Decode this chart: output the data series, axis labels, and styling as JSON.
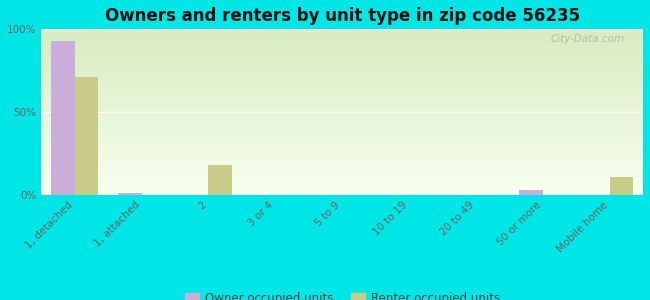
{
  "title": "Owners and renters by unit type in zip code 56235",
  "categories": [
    "1, detached",
    "1, attached",
    "2",
    "3 or 4",
    "5 to 9",
    "10 to 19",
    "20 to 49",
    "50 or more",
    "Mobile home"
  ],
  "owner_values": [
    93,
    1,
    0,
    0,
    0,
    0,
    0,
    3,
    0
  ],
  "renter_values": [
    71,
    0,
    18,
    0,
    0,
    0,
    0,
    0,
    11
  ],
  "owner_color": "#c8aed8",
  "renter_color": "#c8cc88",
  "background_color": "#00e5e5",
  "plot_bg_color": "#f0f8e8",
  "gradient_top": "#d8ecc0",
  "gradient_bottom": "#f8fff0",
  "ylim": [
    0,
    100
  ],
  "yticks": [
    0,
    50,
    100
  ],
  "ytick_labels": [
    "0%",
    "50%",
    "100%"
  ],
  "bar_width": 0.35,
  "legend_owner": "Owner occupied units",
  "legend_renter": "Renter occupied units",
  "watermark": "City-Data.com",
  "title_fontsize": 12,
  "tick_fontsize": 7.5,
  "legend_fontsize": 8.5
}
